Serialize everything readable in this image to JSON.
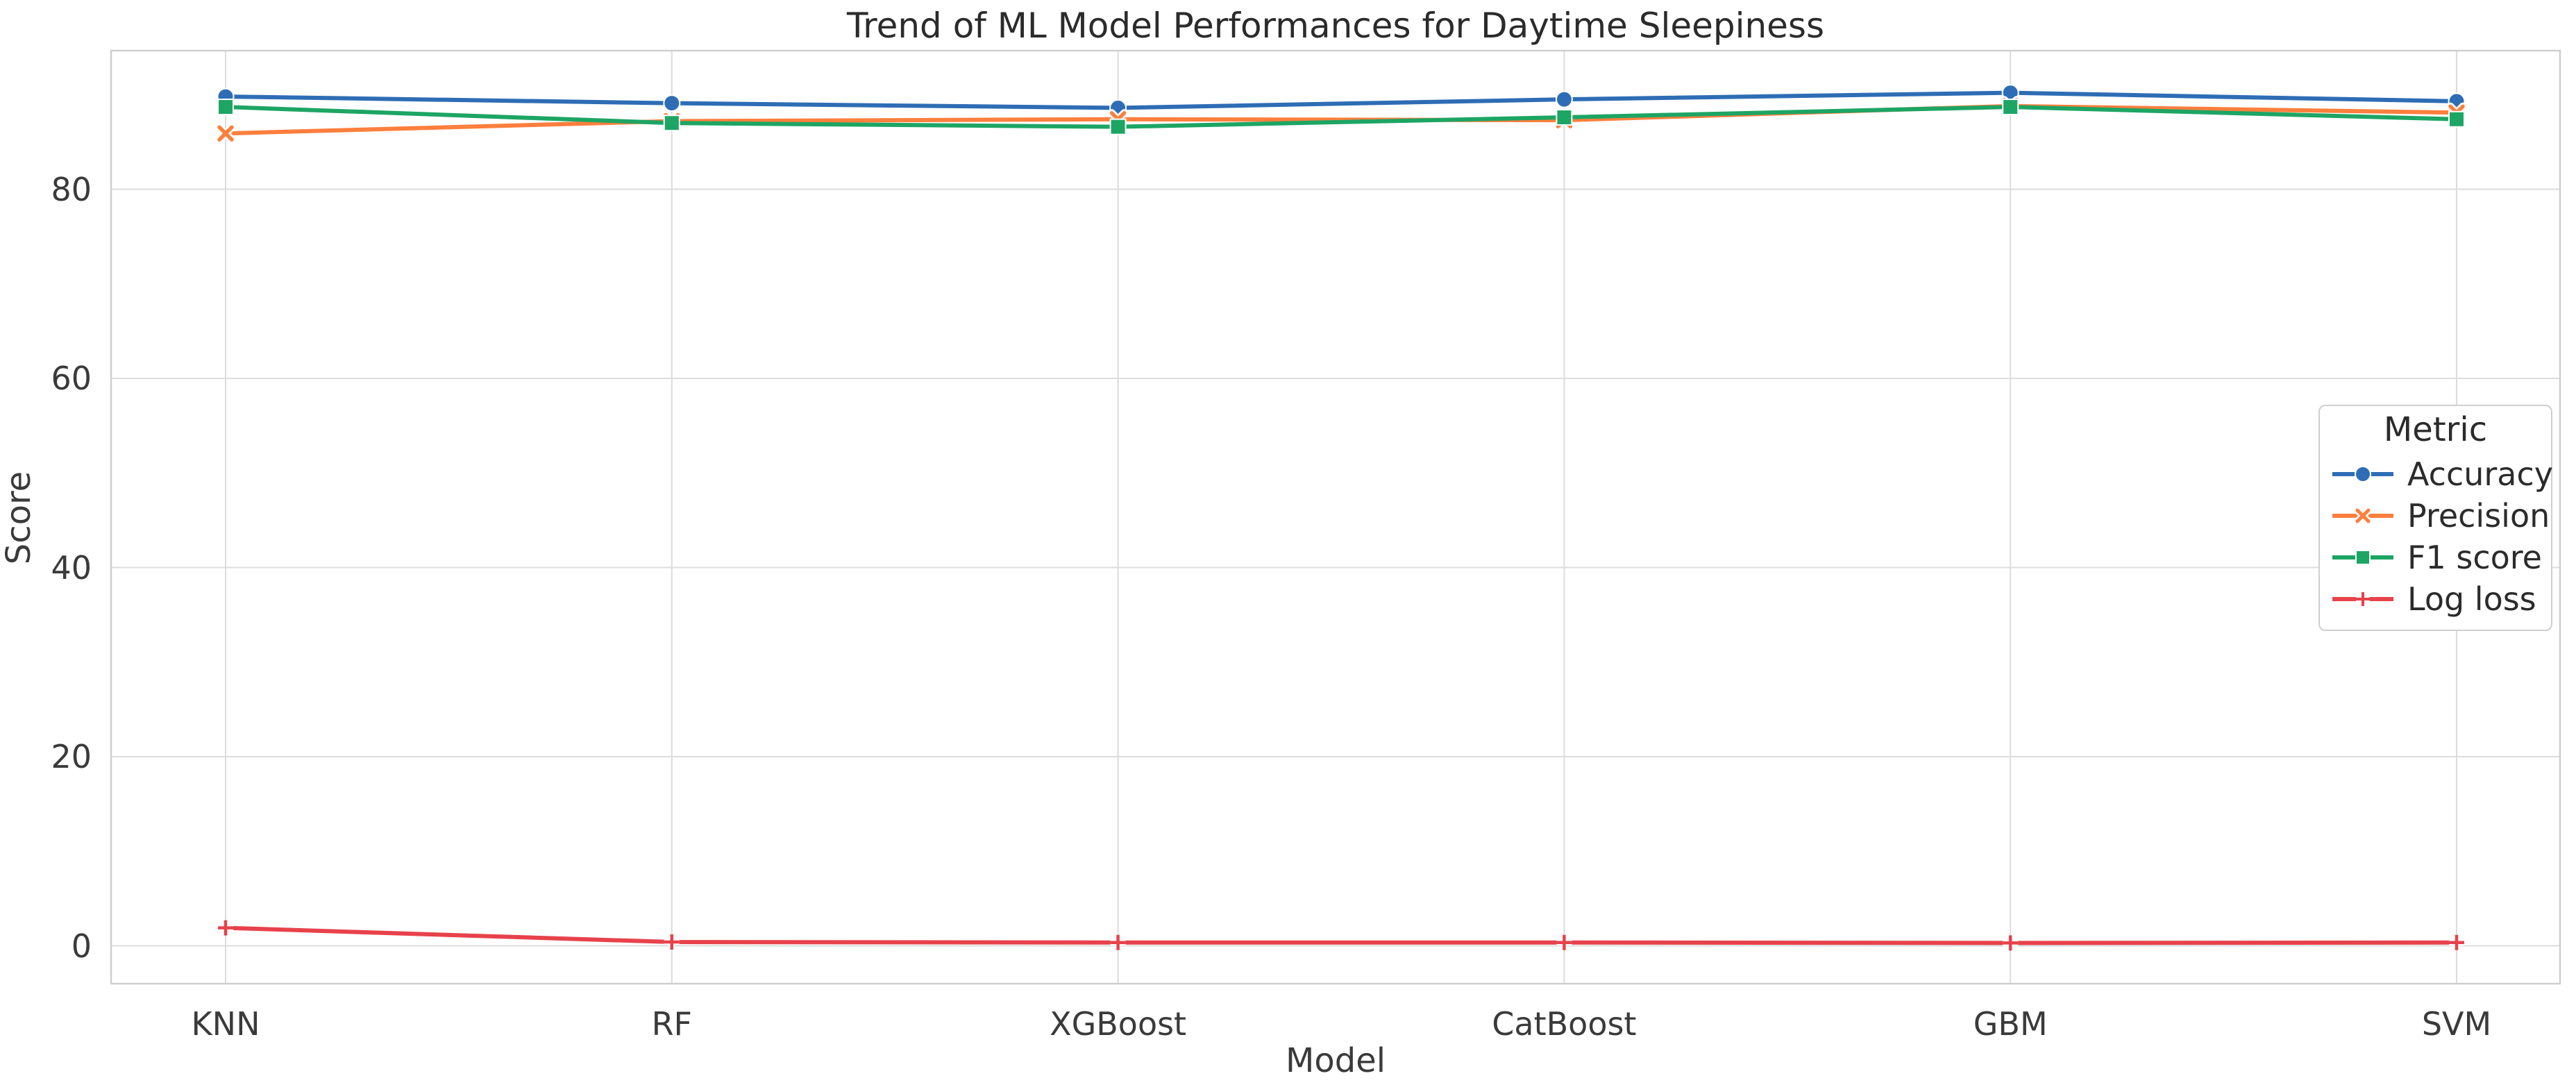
{
  "chart_data": {
    "type": "line",
    "title": "Trend of ML Model Performances for Daytime Sleepiness",
    "xlabel": "Model",
    "ylabel": "Score",
    "categories": [
      "KNN",
      "RF",
      "XGBoost",
      "CatBoost",
      "GBM",
      "SVM"
    ],
    "series": [
      {
        "name": "Accuracy",
        "marker": "circle",
        "color": "#2e6db5",
        "values": [
          89.8,
          89.1,
          88.6,
          89.5,
          90.2,
          89.3
        ]
      },
      {
        "name": "Precision",
        "marker": "x",
        "color": "#fd7f3d",
        "values": [
          85.9,
          87.2,
          87.4,
          87.3,
          88.8,
          88.1
        ]
      },
      {
        "name": "F1 score",
        "marker": "square",
        "color": "#1da564",
        "values": [
          88.7,
          87.0,
          86.6,
          87.6,
          88.7,
          87.4
        ]
      },
      {
        "name": "Log loss",
        "marker": "plus",
        "color": "#e7424b",
        "values": [
          1.9,
          0.4,
          0.35,
          0.35,
          0.3,
          0.35
        ]
      }
    ],
    "yticks": [
      0,
      20,
      40,
      60,
      80
    ],
    "ylim": [
      -4,
      94.65
    ],
    "grid": true,
    "legend": {
      "title": "Metric",
      "position": "center right"
    }
  },
  "colors": {
    "background": "#ffffff",
    "grid": "#dcdcdc",
    "spine": "#cfcfcf",
    "tick_text": "#3a3a3a",
    "title_text": "#2b2b2b"
  }
}
